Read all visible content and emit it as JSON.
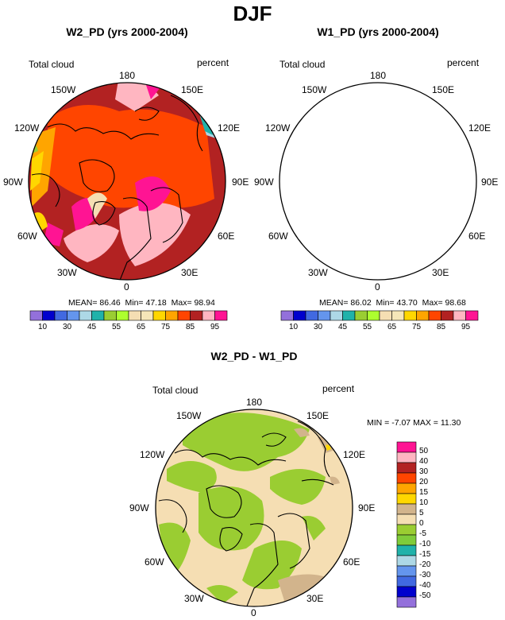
{
  "figure": {
    "title": "DJF"
  },
  "palettes": {
    "abs_colors": [
      "#9370db",
      "#0000cd",
      "#4169e1",
      "#6495ed",
      "#add8e6",
      "#20b2aa",
      "#9acd32",
      "#adff2f",
      "#f5deb3",
      "#f5e6b8",
      "#ffd700",
      "#ffa500",
      "#ff4500",
      "#b22222",
      "#ffb6c1",
      "#ff1493"
    ],
    "abs_ticks": [
      "10",
      "30",
      "45",
      "55",
      "65",
      "75",
      "85",
      "95"
    ],
    "diff_colors": [
      "#9370db",
      "#0000cd",
      "#4169e1",
      "#6495ed",
      "#add8e6",
      "#20b2aa",
      "#7fcc3a",
      "#9acd32",
      "#f5deb3",
      "#d2b48c",
      "#ffd700",
      "#ffa500",
      "#ff4500",
      "#b22222",
      "#ffb6c1",
      "#ff1493"
    ],
    "diff_ticks": [
      "50",
      "40",
      "30",
      "20",
      "15",
      "10",
      "5",
      "0",
      "-5",
      "-10",
      "-15",
      "-20",
      "-30",
      "-40",
      "-50"
    ]
  },
  "chart_data": [
    {
      "type": "heatmap",
      "projection": "north-polar-stereographic",
      "title": "W2_PD (yrs 2000-2004)",
      "left_label": "Total cloud",
      "right_label": "percent",
      "lon_labels": {
        "top": "180",
        "bottom": "0",
        "left": "90W",
        "right": "90E",
        "ul": "150W",
        "ul2": "120W",
        "ur": "150E",
        "ur2": "120E",
        "ll": "60W",
        "ll2": "30W",
        "lr": "60E",
        "lr2": "30E"
      },
      "stats": {
        "mean_label": "MEAN=",
        "mean": "86.46",
        "min_label": "Min=",
        "min": "47.18",
        "max_label": "Max=",
        "max": "98.94"
      },
      "colorbar_levels": [
        10,
        30,
        45,
        55,
        65,
        75,
        85,
        95
      ]
    },
    {
      "type": "heatmap",
      "projection": "north-polar-stereographic",
      "title": "W1_PD (yrs 2000-2004)",
      "left_label": "Total cloud",
      "right_label": "percent",
      "lon_labels": {
        "top": "180",
        "bottom": "0",
        "left": "90W",
        "right": "90E",
        "ul": "150W",
        "ul2": "120W",
        "ur": "150E",
        "ur2": "120E",
        "ll": "60W",
        "ll2": "30W",
        "lr": "60E",
        "lr2": "30E"
      },
      "stats": {
        "mean_label": "MEAN=",
        "mean": "86.02",
        "min_label": "Min=",
        "min": "43.70",
        "max_label": "Max=",
        "max": "98.68"
      },
      "colorbar_levels": [
        10,
        30,
        45,
        55,
        65,
        75,
        85,
        95
      ]
    },
    {
      "type": "heatmap",
      "projection": "north-polar-stereographic",
      "title": "W2_PD - W1_PD",
      "left_label": "Total cloud",
      "right_label": "percent",
      "lon_labels": {
        "top": "180",
        "bottom": "0",
        "left": "90W",
        "right": "90E",
        "ul": "150W",
        "ul2": "120W",
        "ur": "150E",
        "ur2": "120E",
        "ll": "60W",
        "ll2": "30W",
        "lr": "60E",
        "lr2": "30E"
      },
      "stats": {
        "min_label": "MIN =",
        "min": "-7.07",
        "max_label": "MAX =",
        "max": "11.30"
      },
      "colorbar_levels": [
        50,
        40,
        30,
        20,
        15,
        10,
        5,
        0,
        -5,
        -10,
        -15,
        -20,
        -30,
        -40,
        -50
      ]
    }
  ]
}
